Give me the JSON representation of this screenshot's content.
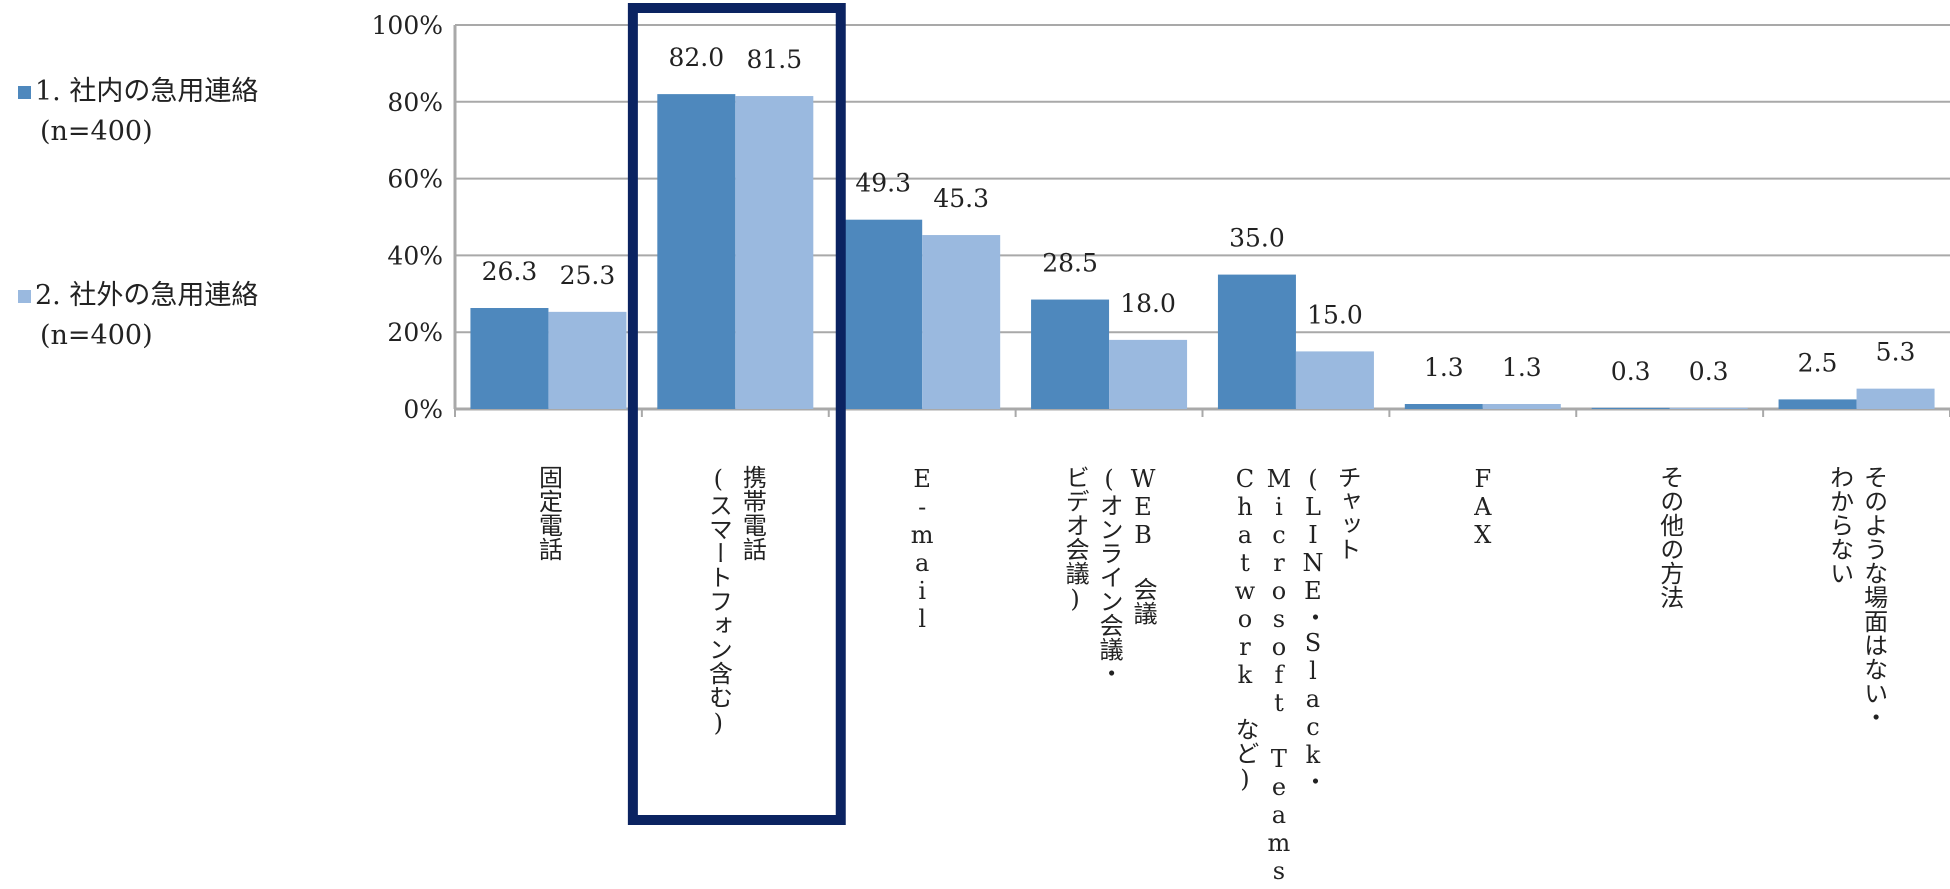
{
  "colors": {
    "series1": "#4e88bd",
    "series2": "#9ab9df",
    "highlight": "#0b2361",
    "grid": "#a9a9a9"
  },
  "legend": [
    {
      "label": "1. 社内の急用連絡",
      "n": "(n=400)"
    },
    {
      "label": "2. 社外の急用連絡",
      "n": "(n=400)"
    }
  ],
  "chart_data": {
    "type": "bar",
    "ylim": [
      0,
      100
    ],
    "yticks": [
      "0%",
      "20%",
      "40%",
      "60%",
      "80%",
      "100%"
    ],
    "grid": true,
    "legend_position": "left",
    "highlighted_category_index": 1,
    "categories": [
      [
        "固定電話"
      ],
      [
        "携帯電話",
        "(スマートフォン含む)"
      ],
      [
        "E-mail"
      ],
      [
        "WEB 会議",
        "(オンライン会議・",
        "ビデオ会議)"
      ],
      [
        "チャット",
        "(LINE・Slack・",
        "Microsoft Teams・",
        "Chatwork など)"
      ],
      [
        "FAX"
      ],
      [
        "その他の方法"
      ],
      [
        "そのような場面はない・",
        "わからない"
      ]
    ],
    "series": [
      {
        "name": "1. 社内の急用連絡",
        "values": [
          26.3,
          82.0,
          49.3,
          28.5,
          35.0,
          1.3,
          0.3,
          2.5
        ],
        "labels": [
          "26.3",
          "82.0",
          "49.3",
          "28.5",
          "35.0",
          "1.3",
          "0.3",
          "2.5"
        ]
      },
      {
        "name": "2. 社外の急用連絡",
        "values": [
          25.3,
          81.5,
          45.3,
          18.0,
          15.0,
          1.3,
          0.3,
          5.3
        ],
        "labels": [
          "25.3",
          "81.5",
          "45.3",
          "18.0",
          "15.0",
          "1.3",
          "0.3",
          "5.3"
        ]
      }
    ]
  }
}
